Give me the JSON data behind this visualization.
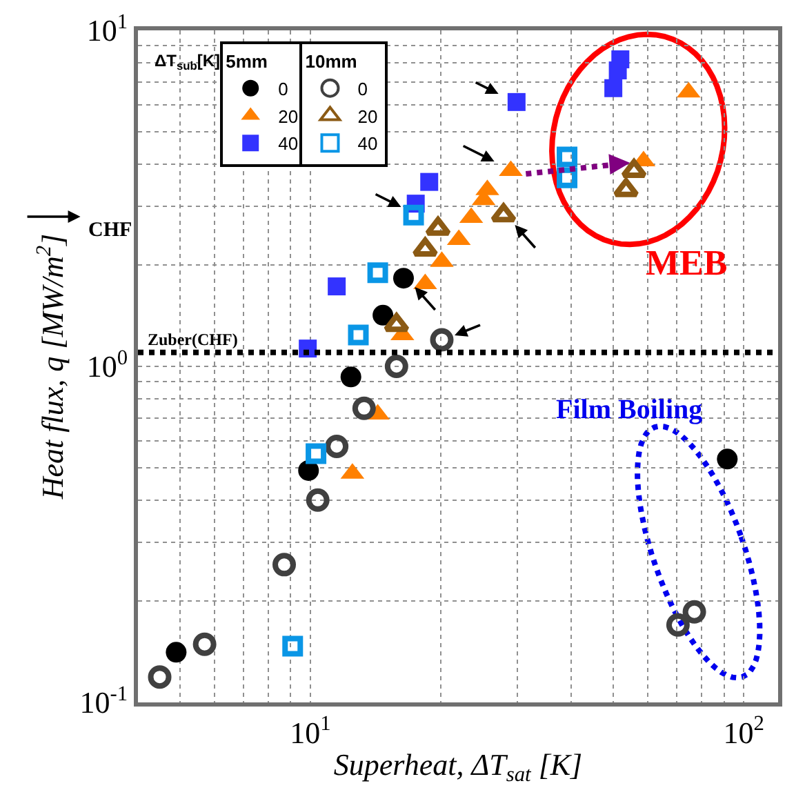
{
  "chart_data": {
    "type": "scatter",
    "xlabel": "Superheat, ΔT$_{sat}$ [K]",
    "ylabel": "Heat flux, q [MW/m$^{2}$]",
    "legend_title": "ΔT$_{sub}$[K]",
    "log": "xy",
    "grid": true,
    "legend": "top left",
    "xlim": [
      4,
      120
    ],
    "ylim": [
      0.1,
      10
    ],
    "xticks": [
      {
        "value": 4,
        "label": null
      },
      {
        "value": 5,
        "label": null
      },
      {
        "value": 6,
        "label": null
      },
      {
        "value": 7,
        "label": null
      },
      {
        "value": 8,
        "label": null
      },
      {
        "value": 9,
        "label": null
      },
      {
        "value": 10,
        "label": "10$^{1}$"
      },
      {
        "value": 20,
        "label": null
      },
      {
        "value": 30,
        "label": null
      },
      {
        "value": 40,
        "label": null
      },
      {
        "value": 50,
        "label": null
      },
      {
        "value": 60,
        "label": null
      },
      {
        "value": 70,
        "label": null
      },
      {
        "value": 80,
        "label": null
      },
      {
        "value": 90,
        "label": null
      },
      {
        "value": 100,
        "label": "10$^{2}$"
      }
    ],
    "yticks": [
      {
        "value": 0.1,
        "label": "10$^{-1}$"
      },
      {
        "value": 0.2,
        "label": null
      },
      {
        "value": 0.3,
        "label": null
      },
      {
        "value": 0.4,
        "label": null
      },
      {
        "value": 0.5,
        "label": null
      },
      {
        "value": 0.6,
        "label": null
      },
      {
        "value": 0.7,
        "label": null
      },
      {
        "value": 0.8,
        "label": null
      },
      {
        "value": 0.9,
        "label": null
      },
      {
        "value": 1,
        "label": "10$^{0}$"
      },
      {
        "value": 2,
        "label": null
      },
      {
        "value": 3,
        "label": null
      },
      {
        "value": 4,
        "label": null
      },
      {
        "value": 5,
        "label": null
      },
      {
        "value": 6,
        "label": null
      },
      {
        "value": 7,
        "label": null
      },
      {
        "value": 8,
        "label": null
      },
      {
        "value": 9,
        "label": null
      },
      {
        "value": 10,
        "label": "10$^{1}$"
      }
    ],
    "series": [
      {
        "name": "0",
        "color": "#000000",
        "marker": "circle",
        "x": [
          4.9,
          9.9,
          12.4,
          14.7,
          16.4,
          91.6
        ],
        "values": [
          0.141,
          0.49,
          0.93,
          1.42,
          1.83,
          0.53
        ]
      },
      {
        "name": "20",
        "color": "#ff8000",
        "marker": "triangle",
        "x": [
          12.5,
          14.3,
          16.3,
          18.4,
          20.1,
          22.0,
          23.5,
          25.1,
          25.6,
          29.0,
          58.7,
          74.6
        ],
        "values": [
          0.48,
          0.72,
          1.24,
          1.76,
          2.05,
          2.38,
          2.77,
          3.13,
          3.35,
          3.82,
          4.08,
          6.54
        ]
      },
      {
        "name": "40",
        "color": "#3333ff",
        "marker": "square",
        "x": [
          9.86,
          11.5,
          17.5,
          18.8,
          29.9,
          50.0,
          51.2,
          51.9
        ],
        "values": [
          1.13,
          1.73,
          3.05,
          3.54,
          6.12,
          6.73,
          7.6,
          8.2
        ]
      },
      {
        "name": "0",
        "color": "#404040",
        "marker": "circle",
        "x": [
          4.49,
          5.7,
          8.7,
          10.4,
          11.5,
          13.3,
          15.8,
          20.1,
          70.5,
          76.9
        ],
        "values": [
          0.119,
          0.149,
          0.257,
          0.4,
          0.578,
          0.75,
          1.0,
          1.2,
          0.17,
          0.186
        ]
      },
      {
        "name": "20",
        "color": "#8b5a14",
        "marker": "triangle",
        "x": [
          15.8,
          18.4,
          19.7,
          27.9,
          53.5,
          55.8
        ],
        "values": [
          1.33,
          2.23,
          2.57,
          2.82,
          3.35,
          3.82
        ]
      },
      {
        "name": "40",
        "color": "#0a96e6",
        "marker": "square",
        "x": [
          9.1,
          10.3,
          12.9,
          14.3,
          17.3,
          39.1,
          39.1
        ],
        "values": [
          0.147,
          0.55,
          1.24,
          1.9,
          2.82,
          4.2,
          3.64
        ]
      }
    ],
    "ref_lines": [
      {
        "axis": "y",
        "value": 1.1,
        "label": "Zuber(CHF)",
        "color": "#000000",
        "line_style": "dotted"
      }
    ],
    "annotations": [
      "5mm",
      "10mm",
      "CHF",
      "MEB",
      "Film Boiling"
    ]
  }
}
